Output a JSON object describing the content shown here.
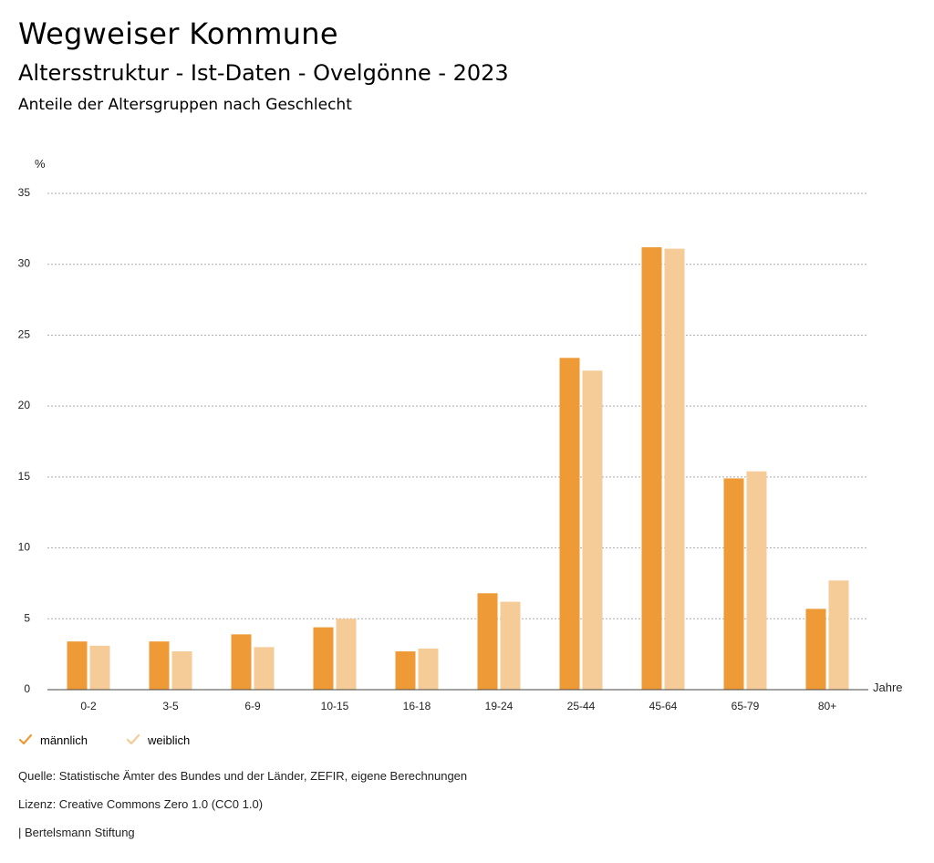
{
  "header": {
    "title": "Wegweiser Kommune",
    "subtitle": "Altersstruktur - Ist-Daten - Ovelgönne - 2023",
    "subsubtitle": "Anteile der Altersgruppen nach Geschlecht"
  },
  "colors": {
    "male": "#ee9a36",
    "female": "#f5cb98"
  },
  "chart_data": {
    "type": "bar",
    "ylabel": "%",
    "xlabel": "Jahre",
    "ylim": [
      0,
      35
    ],
    "yticks": [
      0,
      5,
      10,
      15,
      20,
      25,
      30,
      35
    ],
    "grid": true,
    "legend_position": "bottom-left",
    "categories": [
      "0-2",
      "3-5",
      "6-9",
      "10-15",
      "16-18",
      "19-24",
      "25-44",
      "45-64",
      "65-79",
      "80+"
    ],
    "series": [
      {
        "name": "männlich",
        "values": [
          3.4,
          3.4,
          3.9,
          4.4,
          2.7,
          6.8,
          23.4,
          31.2,
          14.9,
          5.7
        ]
      },
      {
        "name": "weiblich",
        "values": [
          3.1,
          2.7,
          3.0,
          5.0,
          2.9,
          6.2,
          22.5,
          31.1,
          15.4,
          7.7
        ]
      }
    ]
  },
  "legend": {
    "male_label": "männlich",
    "female_label": "weiblich"
  },
  "footer": {
    "source": "Quelle: Statistische Ämter des Bundes und der Länder, ZEFIR, eigene Berechnungen",
    "license": "Lizenz: Creative Commons Zero 1.0 (CC0 1.0)",
    "publisher": "| Bertelsmann Stiftung"
  }
}
